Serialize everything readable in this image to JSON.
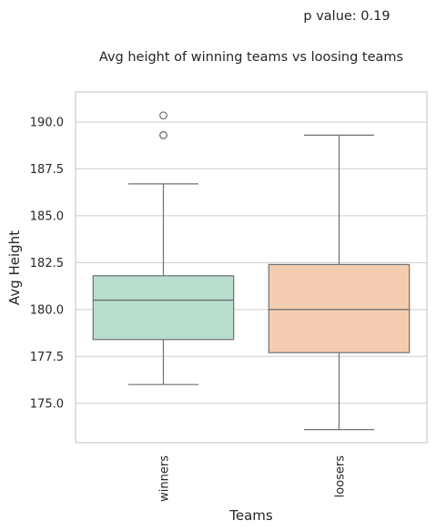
{
  "chart_data": {
    "type": "box",
    "title_top": "p value: 0.19",
    "title": "Avg height of winning teams vs loosing teams",
    "xlabel": "Teams",
    "ylabel": "Avg Height",
    "ylim": [
      172.9,
      191.6
    ],
    "yticks": [
      175.0,
      177.5,
      180.0,
      182.5,
      185.0,
      187.5,
      190.0
    ],
    "ytick_labels": [
      "175.0",
      "177.5",
      "180.0",
      "182.5",
      "185.0",
      "187.5",
      "190.0"
    ],
    "grid": true,
    "categories": [
      "winners",
      "loosers"
    ],
    "boxes": [
      {
        "name": "winners",
        "whisker_low": 176.0,
        "q1": 178.4,
        "median": 180.5,
        "q3": 181.8,
        "whisker_high": 186.7,
        "outliers": [
          189.3,
          189.3,
          190.35
        ],
        "color": "#b8dece"
      },
      {
        "name": "loosers",
        "whisker_low": 173.6,
        "q1": 177.7,
        "median": 180.0,
        "q3": 182.4,
        "whisker_high": 189.3,
        "outliers": [],
        "color": "#f4cdb0"
      }
    ],
    "colors": {
      "grid": "#cccccc",
      "frame": "#cccccc",
      "box_edge": "#707070"
    }
  }
}
